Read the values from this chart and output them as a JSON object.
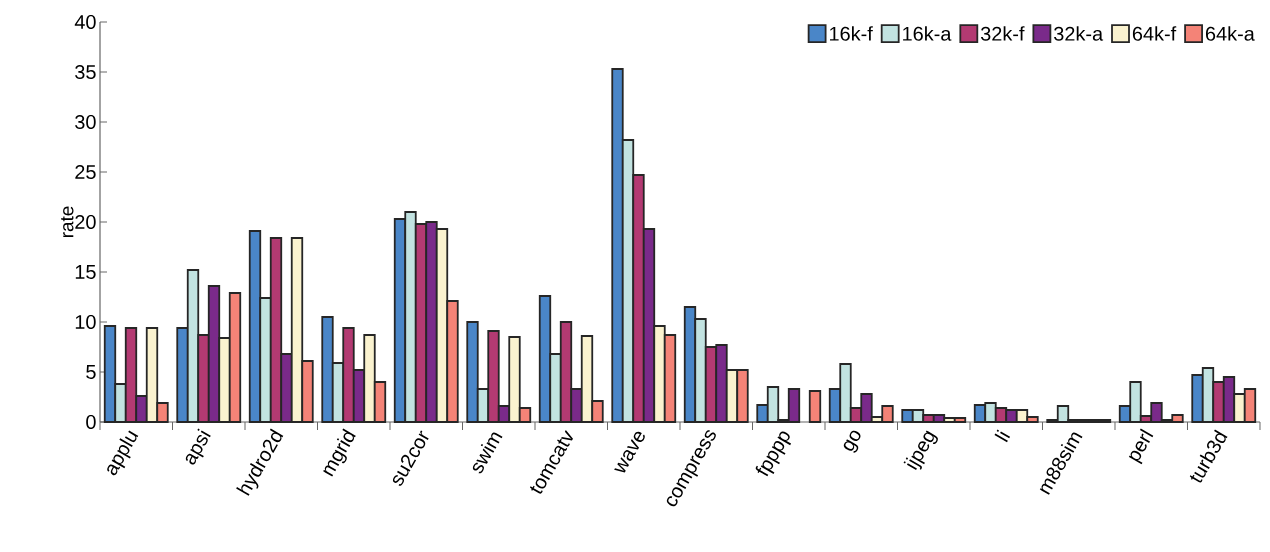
{
  "chart_data": {
    "type": "bar",
    "ylabel": "rate",
    "categories": [
      "applu",
      "apsi",
      "hydro2d",
      "mgrid",
      "su2cor",
      "swim",
      "tomcatv",
      "wave",
      "compress",
      "fpppp",
      "go",
      "ijpeg",
      "li",
      "m88sim",
      "perl",
      "turb3d"
    ],
    "series": [
      {
        "name": "16k-f",
        "color": "#4a86c8",
        "values": [
          9.6,
          9.4,
          19.1,
          10.5,
          20.3,
          10.0,
          12.6,
          35.3,
          11.5,
          1.7,
          3.3,
          1.2,
          1.7,
          0.2,
          1.6,
          4.7
        ]
      },
      {
        "name": "16k-a",
        "color": "#c2e3e1",
        "values": [
          3.8,
          15.2,
          12.4,
          5.9,
          21.0,
          3.3,
          6.8,
          28.2,
          10.3,
          3.5,
          5.8,
          1.2,
          1.9,
          1.6,
          4.0,
          5.4
        ]
      },
      {
        "name": "32k-f",
        "color": "#b33a72",
        "values": [
          9.4,
          8.7,
          18.4,
          9.4,
          19.8,
          9.1,
          10.0,
          24.7,
          7.5,
          0.2,
          1.4,
          0.7,
          1.4,
          0.2,
          0.6,
          4.0
        ]
      },
      {
        "name": "32k-a",
        "color": "#7a2a8a",
        "values": [
          2.6,
          13.6,
          6.8,
          5.2,
          20.0,
          1.6,
          3.3,
          19.3,
          7.7,
          3.3,
          2.8,
          0.7,
          1.2,
          0.2,
          1.9,
          4.5
        ]
      },
      {
        "name": "64k-f",
        "color": "#faf2cf",
        "values": [
          9.4,
          8.4,
          18.4,
          8.7,
          19.3,
          8.5,
          8.6,
          9.6,
          5.2,
          null,
          0.5,
          0.4,
          1.2,
          0.2,
          0.2,
          2.8
        ]
      },
      {
        "name": "64k-a",
        "color": "#f48377",
        "values": [
          1.9,
          12.9,
          6.1,
          4.0,
          12.1,
          1.4,
          2.1,
          8.7,
          5.2,
          3.1,
          1.6,
          0.4,
          0.5,
          0.2,
          0.7,
          3.3
        ]
      }
    ],
    "ylim": [
      0,
      40
    ],
    "yticks": [
      0,
      5,
      10,
      15,
      20,
      25,
      30,
      35,
      40
    ],
    "legend": "top right"
  }
}
